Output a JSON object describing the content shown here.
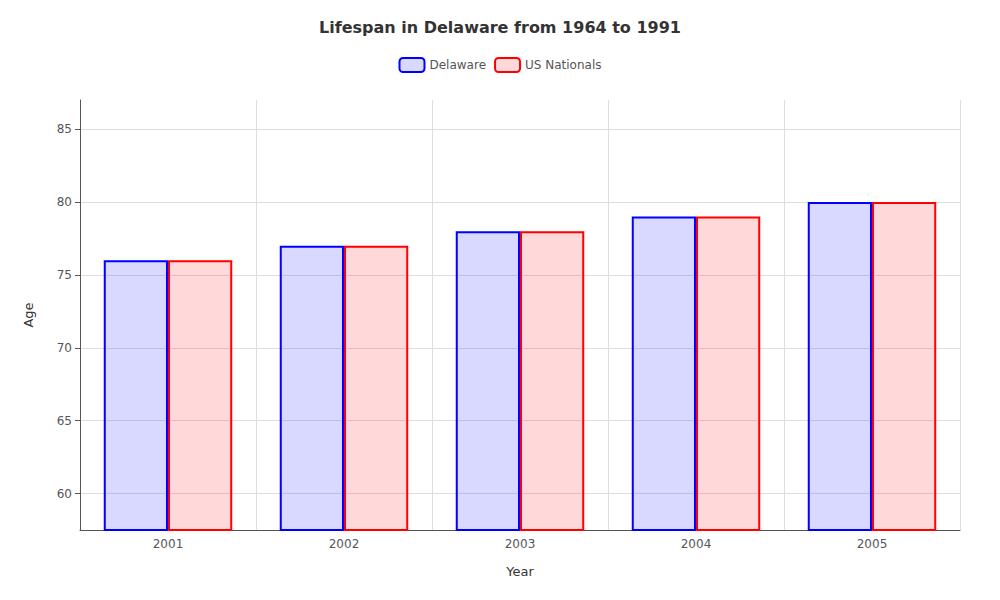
{
  "chart_data": {
    "type": "bar",
    "title": "Lifespan in Delaware from 1964 to 1991",
    "xlabel": "Year",
    "ylabel": "Age",
    "categories": [
      "2001",
      "2002",
      "2003",
      "2004",
      "2005"
    ],
    "series": [
      {
        "name": "Delaware",
        "color": "#0000ff",
        "values": [
          76,
          77,
          78,
          79,
          80
        ]
      },
      {
        "name": "US Nationals",
        "color": "#ff0000",
        "values": [
          76,
          77,
          78,
          79,
          80
        ]
      }
    ],
    "ylim": [
      57.5,
      87
    ],
    "yticks": [
      60,
      65,
      70,
      75,
      80,
      85
    ],
    "grid": true,
    "legend": "top"
  }
}
